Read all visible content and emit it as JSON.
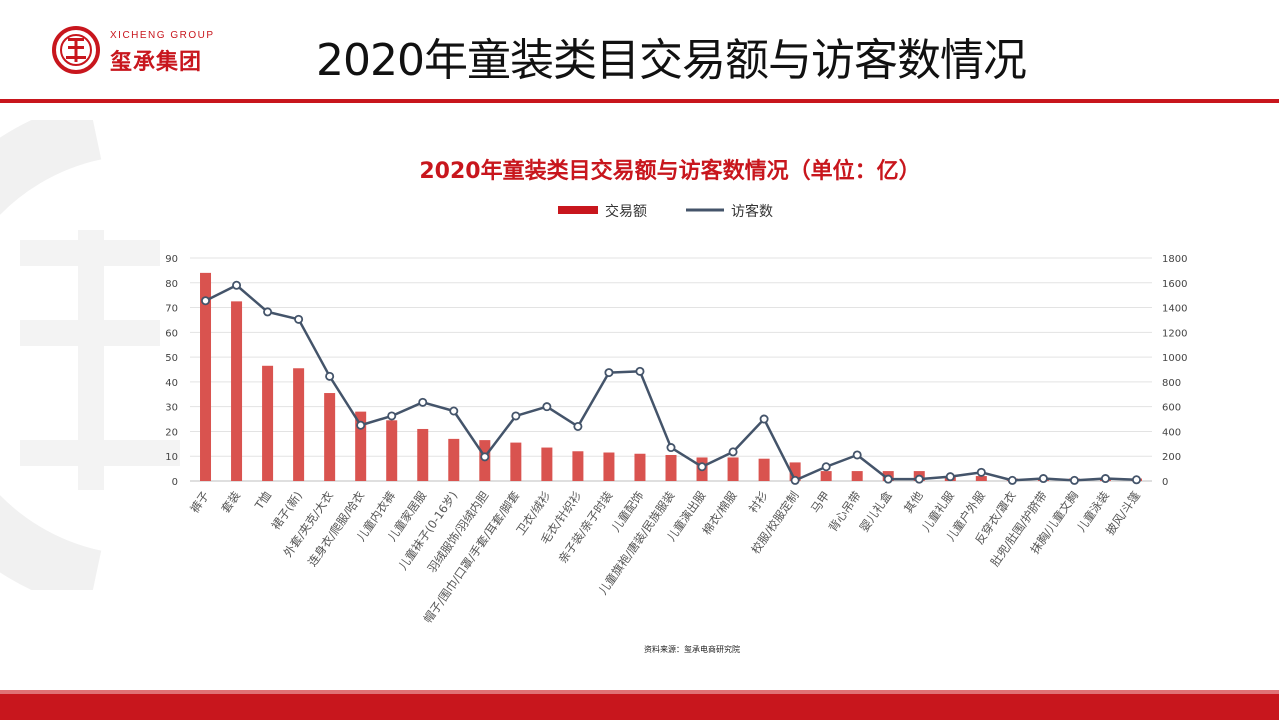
{
  "header": {
    "title": "2020年童装类目交易额与访客数情况",
    "logo_en": "XICHENG GROUP",
    "logo_cn": "玺承集团"
  },
  "source_note": "资料来源：玺承电商研究院",
  "colors": {
    "accent": "#c8161d",
    "bar": "#d9534f",
    "line": "#44546a"
  },
  "chart_data": {
    "type": "bar",
    "title": "2020年童装类目交易额与访客数情况（单位：亿）",
    "legend": {
      "position": "top",
      "items": [
        "交易额",
        "访客数"
      ]
    },
    "categories": [
      "裤子",
      "套装",
      "T恤",
      "裙子(新)",
      "外套/夹克/大衣",
      "连身衣/爬服/哈衣",
      "儿童内衣裤",
      "儿童家居服",
      "儿童袜子(0-16岁)",
      "羽绒服饰/羽绒内胆",
      "帽子/围巾/口罩/手套/耳套/脚套",
      "卫衣/绒衫",
      "毛衣/针织衫",
      "亲子装/亲子时装",
      "儿童配饰",
      "儿童旗袍/唐装/民族服装",
      "儿童演出服",
      "棉衣/棉服",
      "衬衫",
      "校服/校服定制",
      "马甲",
      "背心吊带",
      "婴儿礼盒",
      "其他",
      "儿童礼服",
      "儿童户外服",
      "反穿衣/罩衣",
      "肚兜/肚围/护脐带",
      "抹胸/儿童文胸",
      "儿童泳装",
      "披风/斗篷"
    ],
    "series": [
      {
        "name": "交易额",
        "type": "bar",
        "axis": "left",
        "values": [
          84,
          72.5,
          46.5,
          45.5,
          35.5,
          28,
          24.5,
          21,
          17,
          16.5,
          15.5,
          13.5,
          12,
          11.5,
          11,
          10.5,
          9.5,
          9.5,
          9,
          7.5,
          4,
          4,
          4,
          4,
          2,
          2,
          1,
          1,
          1,
          1,
          1
        ]
      },
      {
        "name": "访客数",
        "type": "line",
        "axis": "right",
        "values": [
          1455,
          1580,
          1365,
          1305,
          845,
          450,
          525,
          635,
          565,
          195,
          525,
          600,
          440,
          875,
          885,
          270,
          115,
          235,
          500,
          5,
          115,
          210,
          15,
          15,
          35,
          70,
          5,
          20,
          5,
          20,
          10
        ]
      }
    ],
    "y_left": {
      "min": 0,
      "max": 90,
      "ticks": [
        0,
        10,
        20,
        30,
        40,
        50,
        60,
        70,
        80,
        90
      ]
    },
    "y_right": {
      "min": 0,
      "max": 1800,
      "ticks": [
        0,
        200,
        400,
        600,
        800,
        1000,
        1200,
        1400,
        1600,
        1800
      ]
    },
    "grid": "horizontal"
  }
}
